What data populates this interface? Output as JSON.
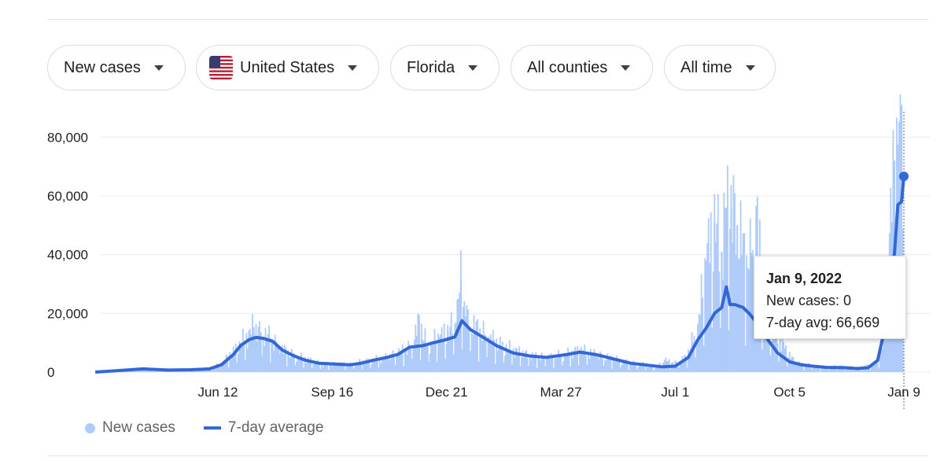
{
  "filters": [
    {
      "label": "New cases",
      "name": "metric-dropdown",
      "flag": false
    },
    {
      "label": "United States",
      "name": "country-dropdown",
      "flag": true
    },
    {
      "label": "Florida",
      "name": "state-dropdown",
      "flag": false
    },
    {
      "label": "All counties",
      "name": "county-dropdown",
      "flag": false
    },
    {
      "label": "All time",
      "name": "timerange-dropdown",
      "flag": false
    }
  ],
  "colors": {
    "bars": "#aecbfa",
    "line": "#3367d6",
    "grid": "#e8eaed"
  },
  "tooltip": {
    "title": "Jan 9, 2022",
    "new_cases": "New cases: 0",
    "avg": "7-day avg: 66,669"
  },
  "legend": {
    "bars_label": "New cases",
    "line_label": "7-day average"
  },
  "chart_data": {
    "type": "bar",
    "title": "",
    "xlabel": "",
    "ylabel": "",
    "ylim": [
      0,
      90000
    ],
    "y_ticks": [
      0,
      20000,
      40000,
      60000,
      80000
    ],
    "y_tick_labels": [
      "0",
      "20,000",
      "40,000",
      "60,000",
      "80,000"
    ],
    "x_ticks": [
      {
        "date": "2020-06-12",
        "label": "Jun 12"
      },
      {
        "date": "2020-09-16",
        "label": "Sep 16"
      },
      {
        "date": "2020-12-21",
        "label": "Dec 21"
      },
      {
        "date": "2021-03-27",
        "label": "Mar 27"
      },
      {
        "date": "2021-07-01",
        "label": "Jul 1"
      },
      {
        "date": "2021-10-05",
        "label": "Oct 5"
      },
      {
        "date": "2022-01-09",
        "label": "Jan 9"
      }
    ],
    "highlight": {
      "date": "2022-01-09",
      "new_cases": 0,
      "avg": 66669
    },
    "series": [
      {
        "name": "New cases",
        "type": "bar",
        "points": [
          [
            "2020-03-01",
            0
          ],
          [
            "2020-03-20",
            800
          ],
          [
            "2020-04-10",
            1100
          ],
          [
            "2020-05-01",
            700
          ],
          [
            "2020-05-20",
            800
          ],
          [
            "2020-06-05",
            1300
          ],
          [
            "2020-06-15",
            3000
          ],
          [
            "2020-06-25",
            7000
          ],
          [
            "2020-07-01",
            10000
          ],
          [
            "2020-07-08",
            13000
          ],
          [
            "2020-07-12",
            15300
          ],
          [
            "2020-07-18",
            13500
          ],
          [
            "2020-07-25",
            12000
          ],
          [
            "2020-08-02",
            9000
          ],
          [
            "2020-08-10",
            6500
          ],
          [
            "2020-08-20",
            5000
          ],
          [
            "2020-09-01",
            3500
          ],
          [
            "2020-09-10",
            2500
          ],
          [
            "2020-09-20",
            3000
          ],
          [
            "2020-10-01",
            2500
          ],
          [
            "2020-10-10",
            3500
          ],
          [
            "2020-10-20",
            4000
          ],
          [
            "2020-11-01",
            5000
          ],
          [
            "2020-11-10",
            6500
          ],
          [
            "2020-11-20",
            8500
          ],
          [
            "2020-11-28",
            17000
          ],
          [
            "2020-12-05",
            9000
          ],
          [
            "2020-12-15",
            12000
          ],
          [
            "2020-12-22",
            14000
          ],
          [
            "2020-12-29",
            17000
          ],
          [
            "2021-01-02",
            31500
          ],
          [
            "2021-01-06",
            19000
          ],
          [
            "2021-01-15",
            15000
          ],
          [
            "2021-01-25",
            12000
          ],
          [
            "2021-02-05",
            9000
          ],
          [
            "2021-02-15",
            7500
          ],
          [
            "2021-03-01",
            5500
          ],
          [
            "2021-03-15",
            5000
          ],
          [
            "2021-04-01",
            6000
          ],
          [
            "2021-04-12",
            7500
          ],
          [
            "2021-04-25",
            6000
          ],
          [
            "2021-05-10",
            4500
          ],
          [
            "2021-05-25",
            3000
          ],
          [
            "2021-06-05",
            2500
          ],
          [
            "2021-06-15",
            1500
          ],
          [
            "2021-06-22",
            4000
          ],
          [
            "2021-07-01",
            3000
          ],
          [
            "2021-07-10",
            5000
          ],
          [
            "2021-07-20",
            15000
          ],
          [
            "2021-07-27",
            38000
          ],
          [
            "2021-08-03",
            51000
          ],
          [
            "2021-08-09",
            41000
          ],
          [
            "2021-08-13",
            56000
          ],
          [
            "2021-08-17",
            56000
          ],
          [
            "2021-08-22",
            50000
          ],
          [
            "2021-08-27",
            42000
          ],
          [
            "2021-09-01",
            35000
          ],
          [
            "2021-09-07",
            55500
          ],
          [
            "2021-09-14",
            20000
          ],
          [
            "2021-09-21",
            15000
          ],
          [
            "2021-10-01",
            8000
          ],
          [
            "2021-10-10",
            3000
          ],
          [
            "2021-10-20",
            2500
          ],
          [
            "2021-11-01",
            1500
          ],
          [
            "2021-11-15",
            2000
          ],
          [
            "2021-12-01",
            1500
          ],
          [
            "2021-12-15",
            2500
          ],
          [
            "2021-12-22",
            8000
          ],
          [
            "2021-12-28",
            45000
          ],
          [
            "2022-01-01",
            72000
          ],
          [
            "2022-01-04",
            77500
          ],
          [
            "2022-01-07",
            91000
          ],
          [
            "2022-01-09",
            0
          ]
        ]
      },
      {
        "name": "7-day average",
        "type": "line",
        "points": [
          [
            "2020-03-01",
            0
          ],
          [
            "2020-03-20",
            500
          ],
          [
            "2020-04-10",
            1100
          ],
          [
            "2020-05-01",
            700
          ],
          [
            "2020-05-20",
            800
          ],
          [
            "2020-06-05",
            1100
          ],
          [
            "2020-06-15",
            2500
          ],
          [
            "2020-06-25",
            6000
          ],
          [
            "2020-07-01",
            9000
          ],
          [
            "2020-07-08",
            11000
          ],
          [
            "2020-07-14",
            11800
          ],
          [
            "2020-07-20",
            11500
          ],
          [
            "2020-07-28",
            10500
          ],
          [
            "2020-08-05",
            7500
          ],
          [
            "2020-08-15",
            5500
          ],
          [
            "2020-08-25",
            4000
          ],
          [
            "2020-09-05",
            3000
          ],
          [
            "2020-09-15",
            2800
          ],
          [
            "2020-10-01",
            2500
          ],
          [
            "2020-10-10",
            3000
          ],
          [
            "2020-10-20",
            4000
          ],
          [
            "2020-11-01",
            5000
          ],
          [
            "2020-11-10",
            6000
          ],
          [
            "2020-11-20",
            8500
          ],
          [
            "2020-12-01",
            9000
          ],
          [
            "2020-12-10",
            10000
          ],
          [
            "2020-12-20",
            11000
          ],
          [
            "2020-12-28",
            12000
          ],
          [
            "2021-01-03",
            17500
          ],
          [
            "2021-01-10",
            14500
          ],
          [
            "2021-01-20",
            12000
          ],
          [
            "2021-02-01",
            9000
          ],
          [
            "2021-02-15",
            6500
          ],
          [
            "2021-03-01",
            5500
          ],
          [
            "2021-03-15",
            5000
          ],
          [
            "2021-04-01",
            6000
          ],
          [
            "2021-04-12",
            6800
          ],
          [
            "2021-04-25",
            6000
          ],
          [
            "2021-05-10",
            4500
          ],
          [
            "2021-05-25",
            3000
          ],
          [
            "2021-06-05",
            2500
          ],
          [
            "2021-06-20",
            1800
          ],
          [
            "2021-07-01",
            2000
          ],
          [
            "2021-07-12",
            5000
          ],
          [
            "2021-07-20",
            11000
          ],
          [
            "2021-07-27",
            15000
          ],
          [
            "2021-08-03",
            20000
          ],
          [
            "2021-08-09",
            22000
          ],
          [
            "2021-08-13",
            29000
          ],
          [
            "2021-08-16",
            23000
          ],
          [
            "2021-08-20",
            23000
          ],
          [
            "2021-08-27",
            22000
          ],
          [
            "2021-09-01",
            20000
          ],
          [
            "2021-09-07",
            17000
          ],
          [
            "2021-09-15",
            12000
          ],
          [
            "2021-09-25",
            6500
          ],
          [
            "2021-10-05",
            3500
          ],
          [
            "2021-10-15",
            2500
          ],
          [
            "2021-10-25",
            2000
          ],
          [
            "2021-11-05",
            1600
          ],
          [
            "2021-11-20",
            1500
          ],
          [
            "2021-12-01",
            1200
          ],
          [
            "2021-12-10",
            1500
          ],
          [
            "2021-12-18",
            4000
          ],
          [
            "2021-12-24",
            15000
          ],
          [
            "2021-12-28",
            35000
          ],
          [
            "2022-01-01",
            40000
          ],
          [
            "2022-01-04",
            57000
          ],
          [
            "2022-01-07",
            58000
          ],
          [
            "2022-01-09",
            66669
          ]
        ]
      }
    ],
    "grid": true,
    "legend_position": "bottom-left"
  }
}
